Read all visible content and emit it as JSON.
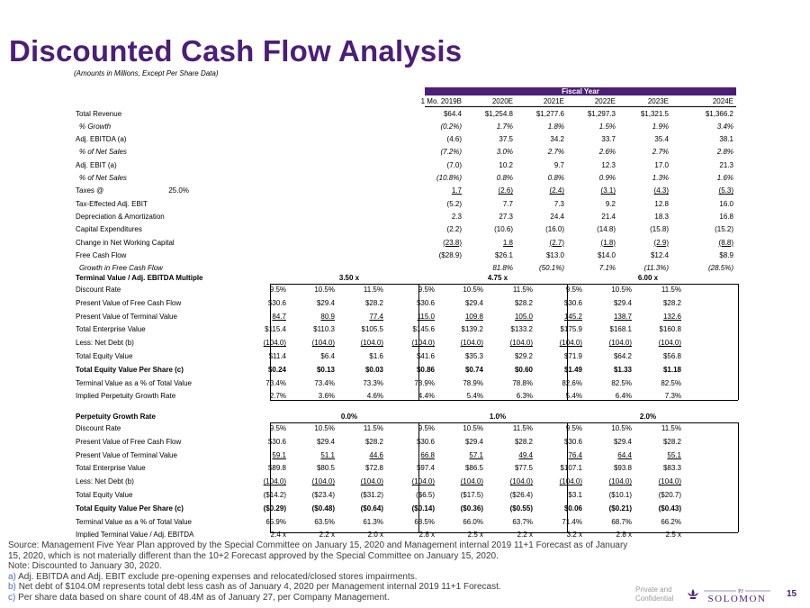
{
  "page": {
    "title": "Discounted Cash Flow Analysis",
    "subtitle": "(Amounts in Millions, Except Per Share Data)",
    "fiscal_year_label": "Fiscal Year",
    "confidential_line1": "Private and",
    "confidential_line2": "Confidential",
    "logo_text": "SOLOMON",
    "logo_mark": "PJ",
    "page_number": "15",
    "brand_color": "#4b1e78"
  },
  "projection": {
    "columns": [
      "1 Mo. 2019B",
      "2020E",
      "2021E",
      "2022E",
      "2023E",
      "2024E"
    ],
    "rows": [
      {
        "label": "Total Revenue",
        "values": [
          "$64.4",
          "$1,254.8",
          "$1,277.6",
          "$1,297.3",
          "$1,321.5",
          "$1,366.2"
        ]
      },
      {
        "label": "% Growth",
        "values": [
          "(0.2%)",
          "1.7%",
          "1.8%",
          "1.5%",
          "1.9%",
          "3.4%"
        ]
      },
      {
        "label": "Adj. EBITDA (a)",
        "values": [
          "(4.6)",
          "37.5",
          "34.2",
          "33.7",
          "35.4",
          "38.1"
        ]
      },
      {
        "label": "% of Net Sales",
        "values": [
          "(7.2%)",
          "3.0%",
          "2.7%",
          "2.6%",
          "2.7%",
          "2.8%"
        ]
      },
      {
        "label": "Adj. EBIT (a)",
        "values": [
          "(7.0)",
          "10.2",
          "9.7",
          "12.3",
          "17.0",
          "21.3"
        ]
      },
      {
        "label": "% of Net Sales",
        "values": [
          "(10.8%)",
          "0.8%",
          "0.8%",
          "0.9%",
          "1.3%",
          "1.6%"
        ]
      },
      {
        "label": "Taxes @",
        "rate": "25.0%",
        "values": [
          "1.7",
          "(2.6)",
          "(2.4)",
          "(3.1)",
          "(4.3)",
          "(5.3)"
        ]
      },
      {
        "label": "Tax-Effected Adj. EBIT",
        "values": [
          "(5.2)",
          "7.7",
          "7.3",
          "9.2",
          "12.8",
          "16.0"
        ]
      },
      {
        "label": "Depreciation & Amortization",
        "values": [
          "2.3",
          "27.3",
          "24.4",
          "21.4",
          "18.3",
          "16.8"
        ]
      },
      {
        "label": "Capital Expenditures",
        "values": [
          "(2.2)",
          "(10.6)",
          "(16.0)",
          "(14.8)",
          "(15.8)",
          "(15.2)"
        ]
      },
      {
        "label": "Change in Net Working Capital",
        "values": [
          "(23.8)",
          "1.8",
          "(2.7)",
          "(1.8)",
          "(2.9)",
          "(8.8)"
        ]
      },
      {
        "label": "Free Cash Flow",
        "values": [
          "($28.9)",
          "$26.1",
          "$13.0",
          "$14.0",
          "$12.4",
          "$8.9"
        ]
      },
      {
        "label": "Growth in Free Cash Flow",
        "values": [
          "",
          "81.8%",
          "(50.1%)",
          "7.1%",
          "(11.3%)",
          "(28.5%)"
        ]
      }
    ]
  },
  "terminal_multiple": {
    "header": "Terminal Value / Adj. EBITDA Multiple",
    "groups": [
      "3.50 x",
      "4.75 x",
      "6.00 x"
    ],
    "rows": [
      {
        "label": "Discount Rate",
        "values": [
          "9.5%",
          "10.5%",
          "11.5%",
          "9.5%",
          "10.5%",
          "11.5%",
          "9.5%",
          "10.5%",
          "11.5%"
        ]
      },
      {
        "label": "Present Value of Free Cash Flow",
        "values": [
          "$30.6",
          "$29.4",
          "$28.2",
          "$30.6",
          "$29.4",
          "$28.2",
          "$30.6",
          "$29.4",
          "$28.2"
        ]
      },
      {
        "label": "Present Value of Terminal Value",
        "values": [
          "84.7",
          "80.9",
          "77.4",
          "115.0",
          "109.8",
          "105.0",
          "145.2",
          "138.7",
          "132.6"
        ]
      },
      {
        "label": "Total Enterprise Value",
        "values": [
          "$115.4",
          "$110.3",
          "$105.5",
          "$145.6",
          "$139.2",
          "$133.2",
          "$175.9",
          "$168.1",
          "$160.8"
        ]
      },
      {
        "label": "Less: Net Debt (b)",
        "values": [
          "(104.0)",
          "(104.0)",
          "(104.0)",
          "(104.0)",
          "(104.0)",
          "(104.0)",
          "(104.0)",
          "(104.0)",
          "(104.0)"
        ]
      },
      {
        "label": "Total Equity Value",
        "values": [
          "$11.4",
          "$6.4",
          "$1.6",
          "$41.6",
          "$35.3",
          "$29.2",
          "$71.9",
          "$64.2",
          "$56.8"
        ]
      },
      {
        "label": "Total Equity Value Per Share (c)",
        "values": [
          "$0.24",
          "$0.13",
          "$0.03",
          "$0.86",
          "$0.74",
          "$0.60",
          "$1.49",
          "$1.33",
          "$1.18"
        ]
      },
      {
        "label": "Terminal Value as a % of Total Value",
        "values": [
          "73.4%",
          "73.4%",
          "73.3%",
          "78.9%",
          "78.9%",
          "78.8%",
          "82.6%",
          "82.5%",
          "82.5%"
        ]
      },
      {
        "label": "Implied Perpetuity Growth Rate",
        "values": [
          "2.7%",
          "3.6%",
          "4.6%",
          "4.4%",
          "5.4%",
          "6.3%",
          "5.4%",
          "6.4%",
          "7.3%"
        ]
      }
    ]
  },
  "perpetuity": {
    "header": "Perpetuity Growth Rate",
    "groups": [
      "0.0%",
      "1.0%",
      "2.0%"
    ],
    "rows": [
      {
        "label": "Discount Rate",
        "values": [
          "9.5%",
          "10.5%",
          "11.5%",
          "9.5%",
          "10.5%",
          "11.5%",
          "9.5%",
          "10.5%",
          "11.5%"
        ]
      },
      {
        "label": "Present Value of Free Cash Flow",
        "values": [
          "$30.6",
          "$29.4",
          "$28.2",
          "$30.6",
          "$29.4",
          "$28.2",
          "$30.6",
          "$29.4",
          "$28.2"
        ]
      },
      {
        "label": "Present Value of Terminal Value",
        "values": [
          "59.1",
          "51.1",
          "44.6",
          "66.8",
          "57.1",
          "49.4",
          "76.4",
          "64.4",
          "55.1"
        ]
      },
      {
        "label": "Total Enterprise Value",
        "values": [
          "$89.8",
          "$80.5",
          "$72.8",
          "$97.4",
          "$86.5",
          "$77.5",
          "$107.1",
          "$93.8",
          "$83.3"
        ]
      },
      {
        "label": "Less: Net Debt (b)",
        "values": [
          "(104.0)",
          "(104.0)",
          "(104.0)",
          "(104.0)",
          "(104.0)",
          "(104.0)",
          "(104.0)",
          "(104.0)",
          "(104.0)"
        ]
      },
      {
        "label": "Total Equity Value",
        "values": [
          "($14.2)",
          "($23.4)",
          "($31.2)",
          "($6.5)",
          "($17.5)",
          "($26.4)",
          "$3.1",
          "($10.1)",
          "($20.7)"
        ]
      },
      {
        "label": "Total Equity Value Per Share (c)",
        "values": [
          "($0.29)",
          "($0.48)",
          "($0.64)",
          "($0.14)",
          "($0.36)",
          "($0.55)",
          "$0.06",
          "($0.21)",
          "($0.43)"
        ]
      },
      {
        "label": "Terminal Value as a % of Total Value",
        "values": [
          "65.9%",
          "63.5%",
          "61.3%",
          "68.5%",
          "66.0%",
          "63.7%",
          "71.4%",
          "68.7%",
          "66.2%"
        ]
      },
      {
        "label": "Implied Terminal Value / Adj. EBITDA",
        "values": [
          "2.4 x",
          "2.2 x",
          "2.0 x",
          "2.8 x",
          "2.5 x",
          "2.2 x",
          "3.2 x",
          "2.8 x",
          "2.5 x"
        ]
      }
    ]
  },
  "footnotes": {
    "source": "Source: Management Five Year Plan approved by the Special Committee on January 15, 2020 and Management internal 2019 11+1 Forecast as of January 15, 2020, which is not materially different than the 10+2 Forecast approved by the Special Committee on January 15, 2020.",
    "note": "Note: Discounted to January 30, 2020.",
    "a_letter": "a)",
    "a_text": "Adj. EBITDA and Adj. EBIT exclude pre-opening expenses and relocated/closed stores impairments.",
    "b_letter": "b)",
    "b_text": "Net debt of $104.0M represents total debt less cash as of January 4, 2020 per Management internal 2019 11+1 Forecast.",
    "c_letter": "c)",
    "c_text": "Per share data based on share count of 48.4M as of January 27, per Company Management."
  }
}
